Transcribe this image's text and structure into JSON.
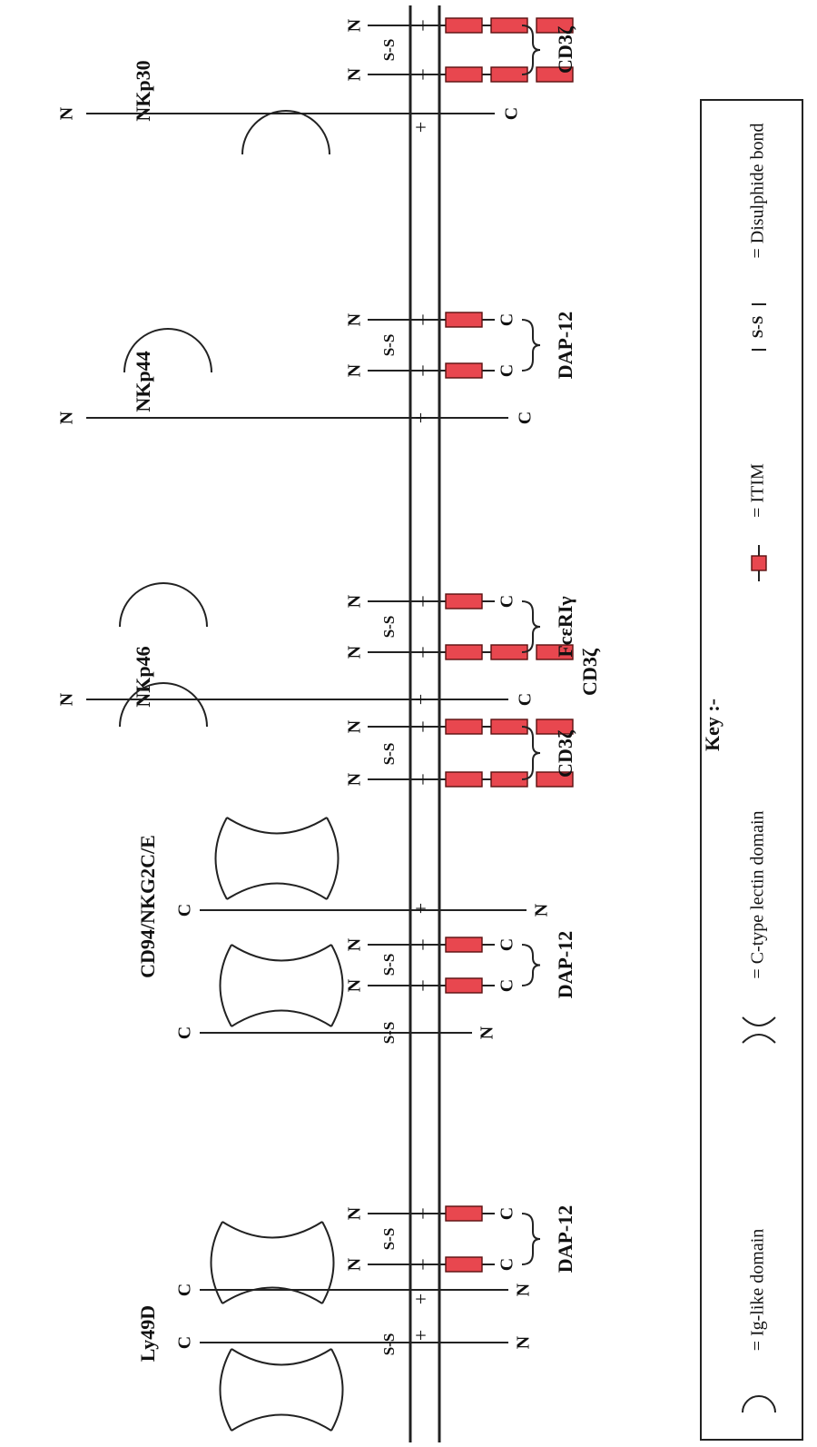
{
  "receptors": [
    {
      "id": "ly49d",
      "label": "Ly49D"
    },
    {
      "id": "cd94",
      "label": "CD94/NKG2C/E"
    },
    {
      "id": "nkp46",
      "label": "NKp46"
    },
    {
      "id": "nkp44",
      "label": "NKp44"
    },
    {
      "id": "nkp30",
      "label": "NKp30"
    }
  ],
  "adaptors": {
    "dap12": "DAP-12",
    "cd3z": "CD3ζ",
    "fceri": "FcεRIγ"
  },
  "terminals": {
    "n": "N",
    "c": "C"
  },
  "bond": "S-S",
  "charges": {
    "plus": "+",
    "minus": "–"
  },
  "key": {
    "title": "Key :-",
    "items": [
      {
        "symbol": "ig-like-domain",
        "text": "= Ig-like domain"
      },
      {
        "symbol": "c-type-lectin-domain",
        "text": "= C-type lectin domain"
      },
      {
        "symbol": "itim",
        "text": "= ITIM"
      },
      {
        "symbol": "disulphide-bond",
        "text": "= Disulphide bond"
      }
    ]
  },
  "colors": {
    "itim_fill": "#e8474f",
    "line": "#222222"
  }
}
